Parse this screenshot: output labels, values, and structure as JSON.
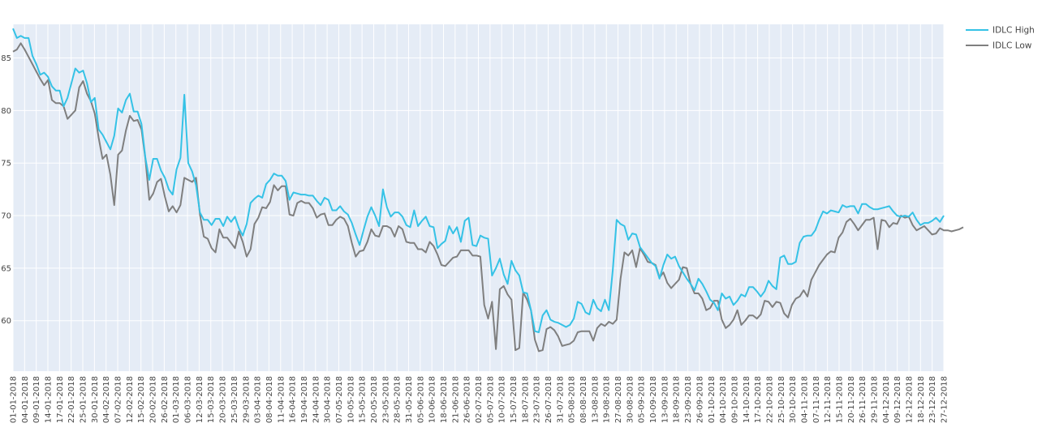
{
  "chart_data": {
    "type": "line",
    "title": "",
    "xlabel": "",
    "ylabel": "",
    "ylim": [
      55.2,
      88.2
    ],
    "grid": true,
    "legend_position": "top-right",
    "y_ticks": [
      60,
      65,
      70,
      75,
      80,
      85
    ],
    "x_ticks": [
      "01-01-2018",
      "04-01-2018",
      "09-01-2018",
      "14-01-2018",
      "17-01-2018",
      "22-01-2018",
      "25-01-2018",
      "30-01-2018",
      "04-02-2018",
      "07-02-2018",
      "12-02-2018",
      "15-02-2018",
      "20-02-2018",
      "26-02-2018",
      "01-03-2018",
      "06-03-2018",
      "12-03-2018",
      "15-03-2018",
      "20-03-2018",
      "25-03-2018",
      "29-03-2018",
      "03-04-2018",
      "08-04-2018",
      "11-04-2018",
      "16-04-2018",
      "19-04-2018",
      "24-04-2018",
      "30-04-2018",
      "07-05-2018",
      "10-05-2018",
      "15-05-2018",
      "20-05-2018",
      "23-05-2018",
      "28-05-2018",
      "31-05-2018",
      "05-06-2018",
      "10-06-2018",
      "18-06-2018",
      "21-06-2018",
      "26-06-2018",
      "02-07-2018",
      "05-07-2018",
      "10-07-2018",
      "15-07-2018",
      "18-07-2018",
      "23-07-2018",
      "26-07-2018",
      "31-07-2018",
      "05-08-2018",
      "08-08-2018",
      "13-08-2018",
      "19-08-2018",
      "27-08-2018",
      "30-08-2018",
      "05-09-2018",
      "10-09-2018",
      "13-09-2018",
      "18-09-2018",
      "23-09-2018",
      "26-09-2018",
      "01-10-2018",
      "04-10-2018",
      "09-10-2018",
      "14-10-2018",
      "17-10-2018",
      "22-10-2018",
      "25-10-2018",
      "30-10-2018",
      "04-11-2018",
      "07-11-2018",
      "12-11-2018",
      "15-11-2018",
      "20-11-2018",
      "26-11-2018",
      "29-11-2018",
      "04-12-2018",
      "09-12-2018",
      "12-12-2018",
      "18-12-2018",
      "23-12-2018",
      "27-12-2018"
    ],
    "series": [
      {
        "name": "IDLC High",
        "color": "#35c2e6",
        "values": [
          87.8,
          86.9,
          87.1,
          86.9,
          86.9,
          85.2,
          84.4,
          83.4,
          83.6,
          83.2,
          82.3,
          81.9,
          81.9,
          80.4,
          81.2,
          82.6,
          84.0,
          83.6,
          83.8,
          82.6,
          80.8,
          81.2,
          78.2,
          77.7,
          77.0,
          76.3,
          77.6,
          80.2,
          79.8,
          81.0,
          81.6,
          79.9,
          79.9,
          78.7,
          75.5,
          73.4,
          75.4,
          75.4,
          74.3,
          73.6,
          72.5,
          72.0,
          74.4,
          75.5,
          81.5,
          75.0,
          74.2,
          72.9,
          70.3,
          69.6,
          69.6,
          69.1,
          69.7,
          69.7,
          69.0,
          69.9,
          69.4,
          69.9,
          68.8,
          68.1,
          69.2,
          71.2,
          71.6,
          71.9,
          71.7,
          73.0,
          73.4,
          74.0,
          73.8,
          73.8,
          73.3,
          71.5,
          72.2,
          72.1,
          72.0,
          72.0,
          71.9,
          71.9,
          71.4,
          71.0,
          71.7,
          71.5,
          70.5,
          70.5,
          70.9,
          70.4,
          70.1,
          69.3,
          68.2,
          67.2,
          68.6,
          69.9,
          70.8,
          70.0,
          69.0,
          72.5,
          70.8,
          69.9,
          70.3,
          70.3,
          69.9,
          69.1,
          68.9,
          70.5,
          69.0,
          69.5,
          69.9,
          69.0,
          68.9,
          66.9,
          67.3,
          67.6,
          69.0,
          68.3,
          68.9,
          67.5,
          69.5,
          69.8,
          67.2,
          67.1,
          68.1,
          67.9,
          67.8,
          64.3,
          65.0,
          65.9,
          64.4,
          63.5,
          65.7,
          64.8,
          64.3,
          62.7,
          62.6,
          61.0,
          59.0,
          58.9,
          60.5,
          61.0,
          60.1,
          59.9,
          59.8,
          59.6,
          59.4,
          59.6,
          60.2,
          61.8,
          61.6,
          60.8,
          60.6,
          62.0,
          61.2,
          60.9,
          62.0,
          61.0,
          64.8,
          69.6,
          69.2,
          69.0,
          67.7,
          68.3,
          68.2,
          67.0,
          66.5,
          66.0,
          65.5,
          65.2,
          64.0,
          65.3,
          66.3,
          65.9,
          66.1,
          65.2,
          64.6,
          64.0,
          63.5,
          62.9,
          64.0,
          63.5,
          62.8,
          62.0,
          61.7,
          61.0,
          62.6,
          62.1,
          62.3,
          61.5,
          61.9,
          62.5,
          62.3,
          63.2,
          63.2,
          62.8,
          62.3,
          62.8,
          63.8,
          63.3,
          63.0,
          66.0,
          66.2,
          65.4,
          65.4,
          65.6,
          67.4,
          68.0,
          68.1,
          68.1,
          68.6,
          69.6,
          70.4,
          70.2,
          70.5,
          70.4,
          70.3,
          71.0,
          70.8,
          70.9,
          70.9,
          70.2,
          71.1,
          71.1,
          70.8,
          70.6,
          70.6,
          70.7,
          70.8,
          70.9,
          70.4,
          70.0,
          69.9,
          70.0,
          69.9,
          70.3,
          69.6,
          69.1,
          69.3,
          69.3,
          69.5,
          69.8,
          69.4,
          70.0
        ]
      },
      {
        "name": "IDLC Low",
        "color": "#7f7f7f",
        "values": [
          85.6,
          85.8,
          86.4,
          85.8,
          85.1,
          84.4,
          83.7,
          83.0,
          82.4,
          82.9,
          81.0,
          80.7,
          80.7,
          80.4,
          79.2,
          79.6,
          80.0,
          82.2,
          82.8,
          81.6,
          80.9,
          79.7,
          77.4,
          75.4,
          75.8,
          73.9,
          71.0,
          75.8,
          76.2,
          78.1,
          79.5,
          79.0,
          79.1,
          78.2,
          75.4,
          71.5,
          72.1,
          73.2,
          73.5,
          71.8,
          70.4,
          70.9,
          70.3,
          71.0,
          73.6,
          73.4,
          73.2,
          73.6,
          70.1,
          68.0,
          67.8,
          66.9,
          66.5,
          68.7,
          67.9,
          67.9,
          67.4,
          66.9,
          68.5,
          67.5,
          66.1,
          66.8,
          69.2,
          69.8,
          70.8,
          70.7,
          71.3,
          72.9,
          72.4,
          72.8,
          72.8,
          70.1,
          70.0,
          71.2,
          71.4,
          71.2,
          71.2,
          70.7,
          69.8,
          70.1,
          70.2,
          69.1,
          69.1,
          69.6,
          69.9,
          69.7,
          69.0,
          67.4,
          66.1,
          66.6,
          66.7,
          67.5,
          68.7,
          68.1,
          68.0,
          69.0,
          69.0,
          68.8,
          68.0,
          69.0,
          68.7,
          67.5,
          67.4,
          67.4,
          66.8,
          66.8,
          66.5,
          67.5,
          67.1,
          66.3,
          65.3,
          65.2,
          65.6,
          66.0,
          66.1,
          66.7,
          66.7,
          66.7,
          66.2,
          66.2,
          66.1,
          61.5,
          60.2,
          61.8,
          57.3,
          63.0,
          63.3,
          62.5,
          62.0,
          57.2,
          57.4,
          62.7,
          62.0,
          61.0,
          58.2,
          57.1,
          57.2,
          59.2,
          59.4,
          59.1,
          58.5,
          57.6,
          57.7,
          57.8,
          58.1,
          58.9,
          59.0,
          59.0,
          59.0,
          58.1,
          59.3,
          59.7,
          59.5,
          59.9,
          59.7,
          60.1,
          64.0,
          66.5,
          66.2,
          66.7,
          65.1,
          66.9,
          66.3,
          65.6,
          65.5,
          65.3,
          64.1,
          64.6,
          63.6,
          63.1,
          63.5,
          63.9,
          65.1,
          65.0,
          63.5,
          62.6,
          62.6,
          62.1,
          61.0,
          61.2,
          61.9,
          61.9,
          60.1,
          59.3,
          59.6,
          60.1,
          61.0,
          59.6,
          60.0,
          60.5,
          60.5,
          60.2,
          60.6,
          61.9,
          61.8,
          61.3,
          61.8,
          61.7,
          60.7,
          60.3,
          61.5,
          62.1,
          62.3,
          62.9,
          62.3,
          63.9,
          64.6,
          65.3,
          65.8,
          66.3,
          66.6,
          66.5,
          67.9,
          68.4,
          69.4,
          69.7,
          69.2,
          68.6,
          69.1,
          69.6,
          69.6,
          69.8,
          66.8,
          69.6,
          69.5,
          68.9,
          69.3,
          69.2,
          70.0,
          69.8,
          69.9,
          69.1,
          68.6,
          68.8,
          69.0,
          68.6,
          68.2,
          68.3,
          68.8,
          68.6,
          68.6,
          68.5,
          68.6,
          68.7,
          68.9
        ]
      }
    ]
  }
}
